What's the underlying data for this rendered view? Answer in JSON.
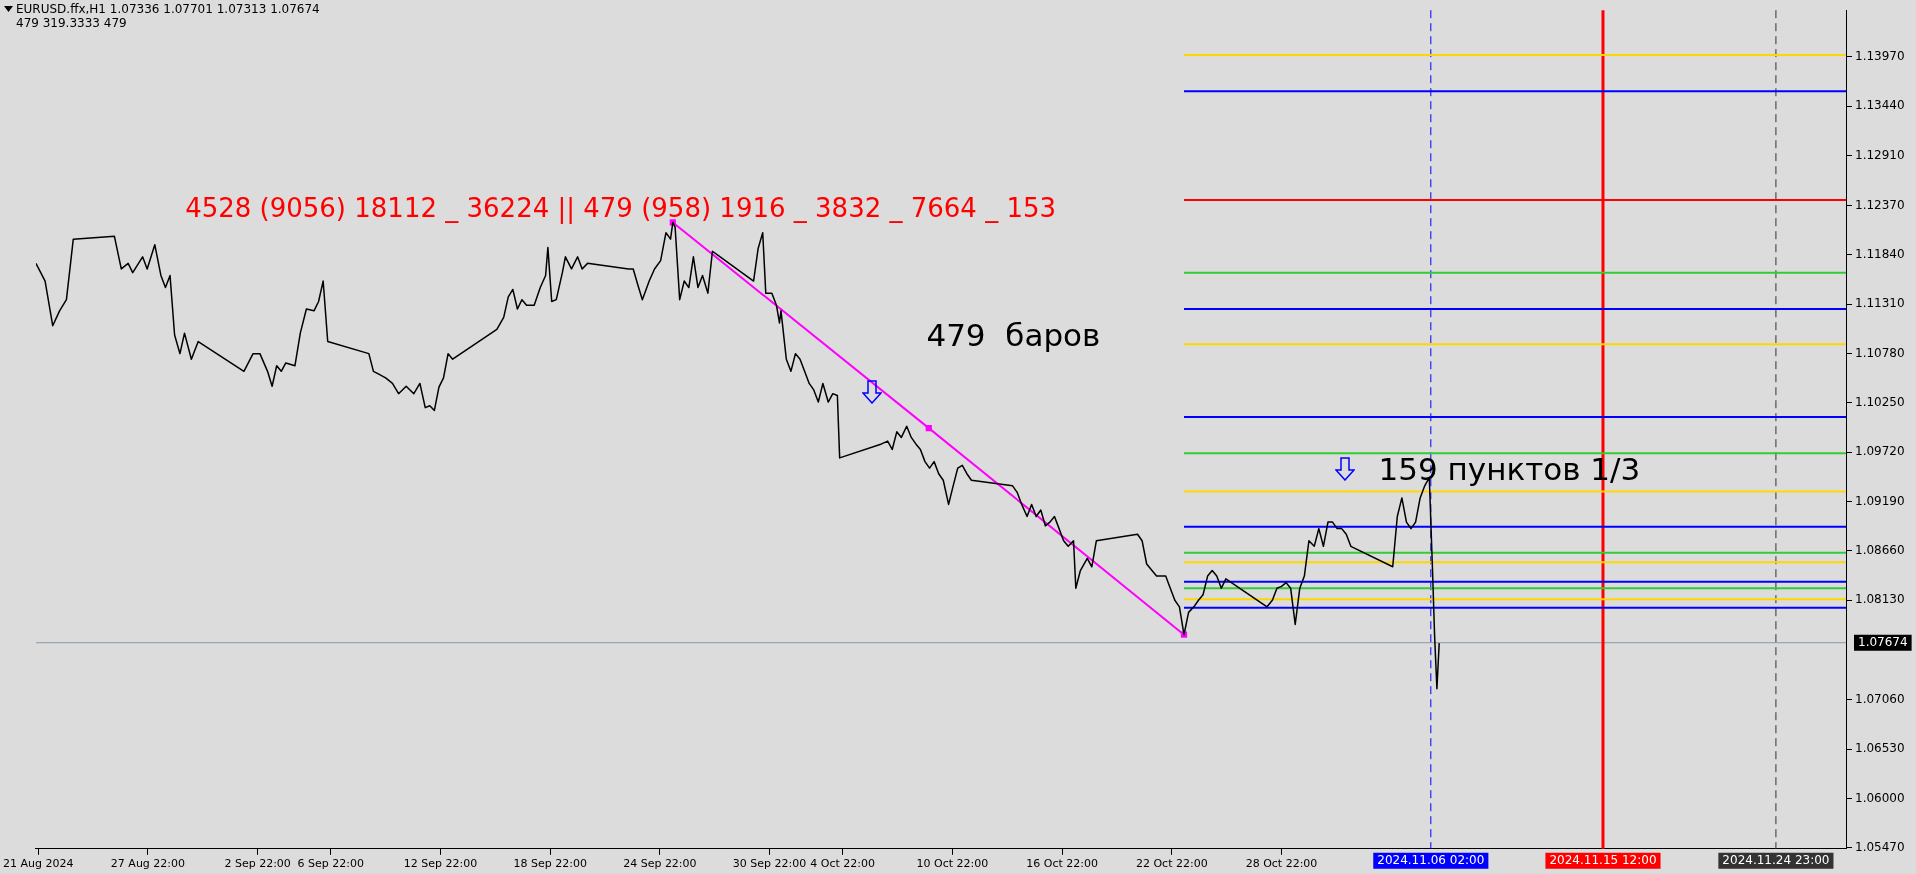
{
  "chart_data": {
    "type": "line",
    "title": "EURUSD.ffx,H1  1.07336 1.07701 1.07313 1.07674",
    "subtitle": "479   319.3333  479",
    "annotations": [
      "4528 (9056) 18112 _ 36224 || 479 (958) 1916 _ 3832 _ 7664 _ 153",
      "479  баров",
      "159 пунктов 1/3"
    ],
    "xlim": [
      "2024-08-21T19:00",
      "2024-11-28T19:00"
    ],
    "xticks": [
      {
        "value": "2024-08-21T22:00",
        "label": "21 Aug 2024"
      },
      {
        "value": "2024-08-27T22:00",
        "label": "27 Aug 22:00"
      },
      {
        "value": "2024-09-02T22:00",
        "label": "2 Sep 22:00"
      },
      {
        "value": "2024-09-06T22:00",
        "label": "6 Sep 22:00"
      },
      {
        "value": "2024-09-12T22:00",
        "label": "12 Sep 22:00"
      },
      {
        "value": "2024-09-18T22:00",
        "label": "18 Sep 22:00"
      },
      {
        "value": "2024-09-24T22:00",
        "label": "24 Sep 22:00"
      },
      {
        "value": "2024-09-30T22:00",
        "label": "30 Sep 22:00"
      },
      {
        "value": "2024-10-04T22:00",
        "label": "4 Oct 22:00"
      },
      {
        "value": "2024-10-10T22:00",
        "label": "10 Oct 22:00"
      },
      {
        "value": "2024-10-16T22:00",
        "label": "16 Oct 22:00"
      },
      {
        "value": "2024-10-22T22:00",
        "label": "22 Oct 22:00"
      },
      {
        "value": "2024-10-28T22:00",
        "label": "28 Oct 22:00"
      }
    ],
    "ylim": [
      1.0546,
      1.1447
    ],
    "yticks": [
      {
        "value": 1.1397,
        "label": "1.13970"
      },
      {
        "value": 1.1344,
        "label": "1.13440"
      },
      {
        "value": 1.1291,
        "label": "1.12910"
      },
      {
        "value": 1.1237,
        "label": "1.12370"
      },
      {
        "value": 1.1184,
        "label": "1.11840"
      },
      {
        "value": 1.1131,
        "label": "1.11310"
      },
      {
        "value": 1.1078,
        "label": "1.10780"
      },
      {
        "value": 1.1025,
        "label": "1.10250"
      },
      {
        "value": 1.0972,
        "label": "1.09720"
      },
      {
        "value": 1.0919,
        "label": "1.09190"
      },
      {
        "value": 1.0866,
        "label": "1.08660"
      },
      {
        "value": 1.0813,
        "label": "1.08130"
      },
      {
        "value": 1.0706,
        "label": "1.07060"
      },
      {
        "value": 1.0653,
        "label": "1.06530"
      },
      {
        "value": 1.06,
        "label": "1.06000"
      },
      {
        "value": 1.0547,
        "label": "1.05470"
      }
    ],
    "grid": false,
    "legend": false,
    "marker": "none",
    "line_style": "solid",
    "ref_lines": [
      {
        "axis": "y",
        "value": 1.07674,
        "label": "1.07674",
        "color": "#8a9aa6",
        "line_style": "solid"
      },
      {
        "axis": "x",
        "value": "2024-11-06T02:00",
        "label": "2024.11.06 02:00",
        "color": "#0000ff",
        "line_style": "dashed"
      },
      {
        "axis": "x",
        "value": "2024-11-15T12:00",
        "label": "2024.11.15 12:00",
        "color": "#ff0000",
        "line_style": "solid"
      },
      {
        "axis": "x",
        "value": "2024-11-24T23:00",
        "label": "2024.11.24 23:00",
        "color": "#333333",
        "line_style": "dashed"
      }
    ],
    "series": [
      {
        "color": "#000000",
        "x": [
          "2024-08-21T19:00",
          "2024-08-22T07:00",
          "2024-08-22T17:00",
          "2024-08-23T02:00",
          "2024-08-23T11:00",
          "2024-08-23T20:00",
          "2024-08-26T02:00",
          "2024-08-26T11:00",
          "2024-08-26T20:00",
          "2024-08-27T02:00",
          "2024-08-27T15:00",
          "2024-08-27T21:00",
          "2024-08-28T07:00",
          "2024-08-28T15:00",
          "2024-08-28T21:00",
          "2024-08-29T03:00",
          "2024-08-29T09:00",
          "2024-08-29T16:00",
          "2024-08-29T22:00",
          "2024-08-30T07:00",
          "2024-08-30T16:00",
          "2024-09-02T04:00",
          "2024-09-02T16:00",
          "2024-09-03T01:00",
          "2024-09-03T11:00",
          "2024-09-03T17:00",
          "2024-09-03T23:00",
          "2024-09-04T05:00",
          "2024-09-04T11:00",
          "2024-09-04T23:00",
          "2024-09-05T06:00",
          "2024-09-05T14:00",
          "2024-09-06T00:00",
          "2024-09-06T06:00",
          "2024-09-06T12:00",
          "2024-09-06T18:00",
          "2024-09-09T00:00",
          "2024-09-09T06:00",
          "2024-09-09T13:00",
          "2024-09-09T22:00",
          "2024-09-10T07:00",
          "2024-09-10T15:00",
          "2024-09-11T01:00",
          "2024-09-11T11:00",
          "2024-09-11T19:00",
          "2024-09-12T02:00",
          "2024-09-12T08:00",
          "2024-09-12T14:00",
          "2024-09-12T20:00",
          "2024-09-13T02:00",
          "2024-09-13T08:00",
          "2024-09-13T14:00",
          "2024-09-16T00:00",
          "2024-09-16T09:00",
          "2024-09-16T15:00",
          "2024-09-16T21:00",
          "2024-09-17T03:00",
          "2024-09-17T09:00",
          "2024-09-17T15:00",
          "2024-09-18T01:00",
          "2024-09-18T09:00",
          "2024-09-18T16:00",
          "2024-09-18T19:00",
          "2024-09-19T00:00",
          "2024-09-19T06:00",
          "2024-09-19T14:00",
          "2024-09-19T18:00",
          "2024-09-20T02:00",
          "2024-09-20T10:00",
          "2024-09-20T16:00",
          "2024-09-20T23:00",
          "2024-09-23T05:00",
          "2024-09-23T11:00",
          "2024-09-23T17:00",
          "2024-09-23T23:00",
          "2024-09-24T08:00",
          "2024-09-24T15:00",
          "2024-09-24T23:00",
          "2024-09-25T06:00",
          "2024-09-25T12:00",
          "2024-09-25T15:00",
          "2024-09-25T18:00",
          "2024-09-26T00:00",
          "2024-09-26T06:00",
          "2024-09-26T12:00",
          "2024-09-26T18:00",
          "2024-09-27T00:00",
          "2024-09-27T06:00",
          "2024-09-27T13:00",
          "2024-09-27T19:00",
          "2024-09-30T01:00",
          "2024-09-30T07:00",
          "2024-09-30T13:00",
          "2024-09-30T17:00",
          "2024-10-01T01:00",
          "2024-10-01T07:00",
          "2024-10-01T11:00",
          "2024-10-01T13:00",
          "2024-10-01T20:00",
          "2024-10-02T02:00",
          "2024-10-02T08:00",
          "2024-10-02T14:00",
          "2024-10-02T20:00",
          "2024-10-03T02:00",
          "2024-10-03T08:00",
          "2024-10-03T14:00",
          "2024-10-03T20:00",
          "2024-10-04T03:00",
          "2024-10-04T09:00",
          "2024-10-04T15:00",
          "2024-10-04T18:00",
          "2024-10-07T01:00",
          "2024-10-07T09:00",
          "2024-10-07T15:00",
          "2024-10-07T21:00",
          "2024-10-08T03:00",
          "2024-10-08T10:00",
          "2024-10-08T16:00",
          "2024-10-08T22:00",
          "2024-10-09T04:00",
          "2024-10-09T10:00",
          "2024-10-09T16:00",
          "2024-10-09T22:00",
          "2024-10-10T04:00",
          "2024-10-10T10:00",
          "2024-10-10T17:00",
          "2024-10-10T23:00",
          "2024-10-11T05:00",
          "2024-10-11T11:00",
          "2024-10-11T17:00",
          "2024-10-11T23:00",
          "2024-10-14T05:00",
          "2024-10-14T11:00",
          "2024-10-14T17:00",
          "2024-10-15T00:00",
          "2024-10-15T06:00",
          "2024-10-15T12:00",
          "2024-10-15T18:00",
          "2024-10-16T00:00",
          "2024-10-16T06:00",
          "2024-10-16T12:00",
          "2024-10-16T18:00",
          "2024-10-17T00:00",
          "2024-10-17T06:00",
          "2024-10-17T13:00",
          "2024-10-17T16:00",
          "2024-10-17T22:00",
          "2024-10-18T07:00",
          "2024-10-18T13:00",
          "2024-10-18T19:00",
          "2024-10-21T01:00",
          "2024-10-21T07:00",
          "2024-10-21T13:00",
          "2024-10-21T20:00",
          "2024-10-22T02:00",
          "2024-10-22T08:00",
          "2024-10-22T14:00",
          "2024-10-22T20:00",
          "2024-10-23T02:00",
          "2024-10-23T08:00",
          "2024-10-23T14:00",
          "2024-10-23T20:00",
          "2024-10-24T03:00",
          "2024-10-24T09:00",
          "2024-10-24T15:00",
          "2024-10-24T21:00",
          "2024-10-25T03:00",
          "2024-10-25T09:00",
          "2024-10-25T15:00",
          "2024-10-25T21:00",
          "2024-10-28T03:00",
          "2024-10-28T10:00",
          "2024-10-28T16:00",
          "2024-10-28T22:00",
          "2024-10-29T04:00",
          "2024-10-29T10:00",
          "2024-10-29T16:00",
          "2024-10-29T22:00",
          "2024-10-30T04:00",
          "2024-10-30T10:00",
          "2024-10-30T17:00",
          "2024-10-30T23:00",
          "2024-10-31T05:00",
          "2024-10-31T11:00",
          "2024-10-31T17:00",
          "2024-10-31T23:00",
          "2024-11-01T05:00",
          "2024-11-01T11:00",
          "2024-11-01T17:00",
          "2024-11-04T00:00",
          "2024-11-04T06:00",
          "2024-11-04T12:00",
          "2024-11-04T18:00",
          "2024-11-05T00:00",
          "2024-11-05T06:00",
          "2024-11-05T12:00",
          "2024-11-05T18:00",
          "2024-11-06T00:00",
          "2024-11-06T04:00",
          "2024-11-06T07:00",
          "2024-11-06T10:00",
          "2024-11-06T13:00"
        ],
        "values": [
          1.1175,
          1.1156,
          1.1108,
          1.1124,
          1.1136,
          1.1201,
          1.1204,
          1.1169,
          1.1175,
          1.1165,
          1.1182,
          1.1169,
          1.1195,
          1.1162,
          1.1149,
          1.1162,
          1.1098,
          1.1078,
          1.11,
          1.1072,
          1.1091,
          1.1059,
          1.1078,
          1.1078,
          1.1059,
          1.1043,
          1.1065,
          1.1059,
          1.1068,
          1.1065,
          1.11,
          1.1126,
          1.1124,
          1.1134,
          1.1156,
          1.1091,
          1.1078,
          1.1059,
          1.1056,
          1.1052,
          1.1046,
          1.1035,
          1.1043,
          1.1035,
          1.1046,
          1.102,
          1.1022,
          1.1017,
          1.1042,
          1.1052,
          1.1078,
          1.1072,
          1.1104,
          1.1117,
          1.1139,
          1.1147,
          1.1126,
          1.1136,
          1.113,
          1.113,
          1.1149,
          1.1162,
          1.1192,
          1.1134,
          1.1136,
          1.1165,
          1.1182,
          1.1169,
          1.1182,
          1.1169,
          1.1175,
          1.1169,
          1.1169,
          1.1152,
          1.1136,
          1.1156,
          1.1169,
          1.1178,
          1.1208,
          1.1201,
          1.1219,
          1.1214,
          1.1136,
          1.1156,
          1.1149,
          1.1182,
          1.1149,
          1.1162,
          1.1143,
          1.1188,
          1.1156,
          1.1191,
          1.1208,
          1.1143,
          1.1143,
          1.113,
          1.1111,
          1.1124,
          1.1072,
          1.1059,
          1.1078,
          1.1072,
          1.1059,
          1.1046,
          1.1039,
          1.1026,
          1.1046,
          1.1026,
          1.1035,
          1.1033,
          1.0966,
          1.0981,
          1.0984,
          1.0975,
          1.0994,
          1.0988,
          1.1,
          1.0988,
          1.0981,
          1.0975,
          1.0962,
          1.0955,
          1.0962,
          1.0949,
          1.0942,
          1.0916,
          1.0936,
          1.0955,
          1.0958,
          1.0949,
          1.0942,
          1.0936,
          1.0929,
          1.0916,
          1.0903,
          1.0916,
          1.0903,
          1.091,
          1.0893,
          1.0897,
          1.0903,
          1.089,
          1.0877,
          1.0871,
          1.0877,
          1.0826,
          1.0845,
          1.0858,
          1.0849,
          1.0877,
          1.0884,
          1.0877,
          1.0852,
          1.0845,
          1.0839,
          1.0839,
          1.0839,
          1.0826,
          1.0813,
          1.0806,
          1.0776,
          1.08,
          1.0806,
          1.0813,
          1.0819,
          1.0839,
          1.0845,
          1.0839,
          1.0826,
          1.0836,
          1.0806,
          1.0813,
          1.0826,
          1.0828,
          1.0832,
          1.0826,
          1.0787,
          1.0826,
          1.0839,
          1.0877,
          1.0871,
          1.089,
          1.0871,
          1.0897,
          1.0897,
          1.089,
          1.089,
          1.0884,
          1.0871,
          1.0849,
          1.0903,
          1.0923,
          1.0897,
          1.089,
          1.0897,
          1.0923,
          1.0936,
          1.0945,
          1.0851,
          1.0774,
          1.0718,
          1.0767
        ]
      },
      {
        "color": "#ff00ff",
        "marker": "square",
        "x": [
          "2024-09-25T15:00",
          "2024-10-09T15:00",
          "2024-10-23T14:00"
        ],
        "values": [
          1.1219,
          1.0998,
          1.0776
        ]
      },
      {
        "color": "#ffd700",
        "x": [
          "2024-10-23T14:00",
          "2024-11-28T19:00"
        ],
        "values": [
          1.1399,
          1.1399
        ]
      },
      {
        "color": "#0000ff",
        "x": [
          "2024-10-23T14:00",
          "2024-11-28T19:00"
        ],
        "values": [
          1.136,
          1.136
        ]
      },
      {
        "color": "#ff0000",
        "x": [
          "2024-10-23T14:00",
          "2024-11-28T19:00"
        ],
        "values": [
          1.1243,
          1.1243
        ]
      },
      {
        "color": "#32cd32",
        "x": [
          "2024-10-23T14:00",
          "2024-11-28T19:00"
        ],
        "values": [
          1.1165,
          1.1165
        ]
      },
      {
        "color": "#0000ff",
        "x": [
          "2024-10-23T14:00",
          "2024-11-28T19:00"
        ],
        "values": [
          1.1126,
          1.1126
        ]
      },
      {
        "color": "#ffd700",
        "x": [
          "2024-10-23T14:00",
          "2024-11-28T19:00"
        ],
        "values": [
          1.1088,
          1.1088
        ]
      },
      {
        "color": "#0000ff",
        "x": [
          "2024-10-23T14:00",
          "2024-11-28T19:00"
        ],
        "values": [
          1.101,
          1.101
        ]
      },
      {
        "color": "#32cd32",
        "x": [
          "2024-10-23T14:00",
          "2024-11-28T19:00"
        ],
        "values": [
          1.0971,
          1.0971
        ]
      },
      {
        "color": "#ffd700",
        "x": [
          "2024-10-23T14:00",
          "2024-11-28T19:00"
        ],
        "values": [
          1.093,
          1.093
        ]
      },
      {
        "color": "#0000ff",
        "x": [
          "2024-10-23T14:00",
          "2024-11-28T19:00"
        ],
        "values": [
          1.0892,
          1.0892
        ]
      },
      {
        "color": "#32cd32",
        "x": [
          "2024-10-23T14:00",
          "2024-11-28T19:00"
        ],
        "values": [
          1.0864,
          1.0864
        ]
      },
      {
        "color": "#ffd700",
        "x": [
          "2024-10-23T14:00",
          "2024-11-28T19:00"
        ],
        "values": [
          1.0854,
          1.0854
        ]
      },
      {
        "color": "#0000ff",
        "x": [
          "2024-10-23T14:00",
          "2024-11-28T19:00"
        ],
        "values": [
          1.0833,
          1.0833
        ]
      },
      {
        "color": "#32cd32",
        "x": [
          "2024-10-23T14:00",
          "2024-11-28T19:00"
        ],
        "values": [
          1.0826,
          1.0826
        ]
      },
      {
        "color": "#ffd700",
        "x": [
          "2024-10-23T14:00",
          "2024-11-28T19:00"
        ],
        "values": [
          1.0814,
          1.0814
        ]
      },
      {
        "color": "#0000ff",
        "x": [
          "2024-10-23T14:00",
          "2024-11-28T19:00"
        ],
        "values": [
          1.0805,
          1.0805
        ]
      }
    ]
  }
}
